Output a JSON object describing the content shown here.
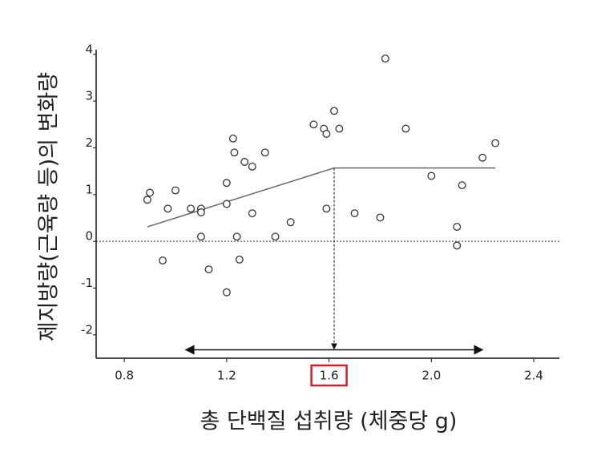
{
  "chart_data": {
    "type": "scatter",
    "xlabel": "총 단백질 섭취량 (체중당 g)",
    "ylabel": "제지방량(근육량 등)의 변화량",
    "x": [
      0.89,
      0.9,
      0.95,
      0.97,
      1.0,
      1.06,
      1.1,
      1.1,
      1.1,
      1.13,
      1.2,
      1.2,
      1.2,
      1.225,
      1.23,
      1.24,
      1.25,
      1.27,
      1.3,
      1.3,
      1.35,
      1.39,
      1.45,
      1.54,
      1.58,
      1.59,
      1.59,
      1.62,
      1.64,
      1.7,
      1.8,
      1.82,
      1.9,
      2.0,
      2.1,
      2.1,
      2.12,
      2.2,
      2.25
    ],
    "y": [
      0.89,
      1.04,
      -0.41,
      0.7,
      1.09,
      0.7,
      0.7,
      0.62,
      0.1,
      -0.6,
      1.25,
      0.8,
      -1.09,
      2.2,
      1.9,
      0.1,
      -0.39,
      1.7,
      1.6,
      0.6,
      1.9,
      0.1,
      0.41,
      2.5,
      2.41,
      2.3,
      0.7,
      2.79,
      2.41,
      0.6,
      0.51,
      3.91,
      2.41,
      1.4,
      0.31,
      -0.09,
      1.2,
      1.79,
      2.1
    ],
    "color": "#333333",
    "fit_line": {
      "x": [
        0.89,
        1.62,
        2.25
      ],
      "y": [
        0.31,
        1.57,
        1.57
      ],
      "color": "#666666"
    },
    "threshold": 1.62,
    "range_arrow": [
      1.04,
      2.2
    ],
    "arrow_y": -2.32,
    "highlight_xtick": 1.6,
    "xlim": [
      0.69,
      2.5
    ],
    "ylim": [
      -2.5,
      4.1
    ],
    "xticks": [
      0.8,
      1.2,
      1.6,
      {
        "value": 2,
        "label": "2.0"
      },
      2.4
    ],
    "yticks": [
      -2,
      -1,
      0,
      1,
      2,
      3,
      4
    ]
  }
}
